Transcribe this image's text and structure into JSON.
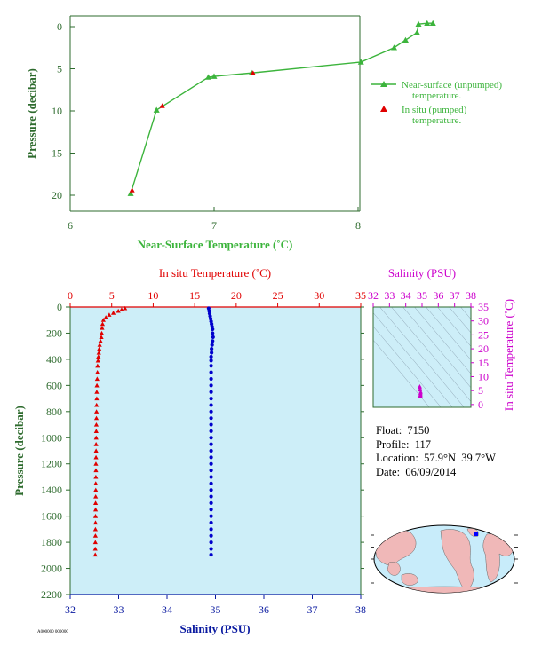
{
  "colors": {
    "green": "#3cb43c",
    "axis_green": "#2e6b2e",
    "red": "#e00000",
    "blue": "#0000cc",
    "magenta": "#cc00cc",
    "panel_bg": "#cdeef8",
    "label_blue": "#0a1aa0"
  },
  "float_info": {
    "float_label": "Float:",
    "float_value": "7150",
    "profile_label": "Profile:",
    "profile_value": "117",
    "location_label": "Location:",
    "location_value": "57.9°N  39.7°W",
    "date_label": "Date:",
    "date_value": "06/09/2014"
  },
  "footer_code": "A000000 000000",
  "chart_data": [
    {
      "id": "near-surface",
      "type": "line",
      "xlabel": "Near-Surface Temperature (˚C)",
      "ylabel": "Pressure (decibar)",
      "xlim": [
        6,
        8
      ],
      "ylim": [
        22,
        -1
      ],
      "x_ticks": [
        6,
        7,
        8
      ],
      "y_ticks": [
        0,
        5,
        10,
        15,
        20
      ],
      "series": [
        {
          "name": "Near-surface (unpumped) temperature.",
          "marker": "triangle-up",
          "points": [
            [
              6.42,
              19.8
            ],
            [
              6.6,
              9.9
            ],
            [
              6.96,
              6.0
            ],
            [
              7.0,
              5.9
            ],
            [
              7.26,
              5.5
            ],
            [
              8.02,
              4.2
            ],
            [
              8.25,
              2.5
            ],
            [
              8.33,
              1.6
            ],
            [
              8.41,
              0.7
            ],
            [
              8.42,
              -0.3
            ],
            [
              8.48,
              -0.4
            ],
            [
              8.52,
              -0.4
            ]
          ]
        },
        {
          "name": "In situ (pumped) temperature.",
          "marker": "triangle-up",
          "points": [
            [
              6.43,
              19.4
            ],
            [
              6.64,
              9.4
            ],
            [
              7.27,
              5.5
            ]
          ]
        }
      ]
    },
    {
      "id": "profile",
      "type": "scatter",
      "top_axis_label": "In situ Temperature (˚C)",
      "bottom_axis_label": "Salinity (PSU)",
      "ylabel": "Pressure (decibar)",
      "temperature_lim": [
        0,
        35
      ],
      "salinity_lim": [
        32,
        38
      ],
      "pressure_lim": [
        2200,
        0
      ],
      "temperature_ticks": [
        0,
        5,
        10,
        15,
        20,
        25,
        30,
        35
      ],
      "salinity_ticks": [
        32,
        33,
        34,
        35,
        36,
        37,
        38
      ],
      "pressure_ticks": [
        0,
        200,
        400,
        600,
        800,
        1000,
        1200,
        1400,
        1600,
        1800,
        2000,
        2200
      ],
      "temperature_profile": {
        "marker": "triangle-up",
        "points": [
          [
            6.6,
            10
          ],
          [
            6.2,
            20
          ],
          [
            5.8,
            30
          ],
          [
            5.2,
            45
          ],
          [
            4.7,
            60
          ],
          [
            4.3,
            80
          ],
          [
            4.0,
            100
          ],
          [
            3.9,
            130
          ],
          [
            3.85,
            160
          ],
          [
            3.8,
            200
          ],
          [
            3.75,
            230
          ],
          [
            3.65,
            260
          ],
          [
            3.55,
            290
          ],
          [
            3.5,
            320
          ],
          [
            3.45,
            350
          ],
          [
            3.4,
            380
          ],
          [
            3.35,
            410
          ],
          [
            3.3,
            450
          ],
          [
            3.28,
            500
          ],
          [
            3.25,
            550
          ],
          [
            3.22,
            600
          ],
          [
            3.2,
            650
          ],
          [
            3.2,
            700
          ],
          [
            3.18,
            750
          ],
          [
            3.17,
            800
          ],
          [
            3.16,
            850
          ],
          [
            3.15,
            900
          ],
          [
            3.14,
            950
          ],
          [
            3.13,
            1000
          ],
          [
            3.12,
            1050
          ],
          [
            3.12,
            1100
          ],
          [
            3.11,
            1150
          ],
          [
            3.1,
            1200
          ],
          [
            3.1,
            1250
          ],
          [
            3.09,
            1300
          ],
          [
            3.08,
            1350
          ],
          [
            3.08,
            1400
          ],
          [
            3.07,
            1450
          ],
          [
            3.06,
            1500
          ],
          [
            3.06,
            1550
          ],
          [
            3.05,
            1600
          ],
          [
            3.05,
            1650
          ],
          [
            3.04,
            1700
          ],
          [
            3.04,
            1750
          ],
          [
            3.03,
            1800
          ],
          [
            3.02,
            1850
          ],
          [
            3.02,
            1895
          ]
        ]
      },
      "salinity_profile": {
        "marker": "circle",
        "points": [
          [
            34.86,
            10
          ],
          [
            34.87,
            30
          ],
          [
            34.88,
            50
          ],
          [
            34.89,
            70
          ],
          [
            34.9,
            90
          ],
          [
            34.91,
            110
          ],
          [
            34.92,
            130
          ],
          [
            34.93,
            150
          ],
          [
            34.94,
            170
          ],
          [
            34.94,
            200
          ],
          [
            34.95,
            230
          ],
          [
            34.94,
            260
          ],
          [
            34.93,
            290
          ],
          [
            34.92,
            320
          ],
          [
            34.92,
            350
          ],
          [
            34.91,
            380
          ],
          [
            34.91,
            410
          ],
          [
            34.91,
            450
          ],
          [
            34.91,
            500
          ],
          [
            34.91,
            550
          ],
          [
            34.91,
            600
          ],
          [
            34.91,
            650
          ],
          [
            34.91,
            700
          ],
          [
            34.91,
            750
          ],
          [
            34.91,
            800
          ],
          [
            34.91,
            850
          ],
          [
            34.91,
            900
          ],
          [
            34.91,
            950
          ],
          [
            34.91,
            1000
          ],
          [
            34.91,
            1050
          ],
          [
            34.91,
            1100
          ],
          [
            34.91,
            1150
          ],
          [
            34.91,
            1200
          ],
          [
            34.91,
            1250
          ],
          [
            34.91,
            1300
          ],
          [
            34.91,
            1350
          ],
          [
            34.91,
            1400
          ],
          [
            34.91,
            1450
          ],
          [
            34.91,
            1500
          ],
          [
            34.91,
            1550
          ],
          [
            34.91,
            1600
          ],
          [
            34.91,
            1650
          ],
          [
            34.91,
            1700
          ],
          [
            34.91,
            1750
          ],
          [
            34.91,
            1800
          ],
          [
            34.91,
            1850
          ],
          [
            34.91,
            1895
          ]
        ]
      }
    },
    {
      "id": "ts-diagram",
      "type": "scatter",
      "top_axis_label": "Salinity (PSU)",
      "right_axis_label": "In situ Temperature (˚C)",
      "salinity_lim": [
        32,
        38
      ],
      "temperature_lim": [
        -1,
        35
      ],
      "salinity_ticks": [
        32,
        33,
        34,
        35,
        36,
        37,
        38
      ],
      "temperature_ticks": [
        0,
        5,
        10,
        15,
        20,
        25,
        30,
        35
      ],
      "points": [
        [
          34.9,
          3.0
        ],
        [
          34.9,
          3.3
        ],
        [
          34.91,
          3.6
        ],
        [
          34.91,
          4.0
        ],
        [
          34.92,
          4.5
        ],
        [
          34.88,
          5.3
        ],
        [
          34.87,
          6.1
        ],
        [
          34.86,
          6.5
        ],
        [
          34.9,
          3.1
        ]
      ]
    }
  ]
}
